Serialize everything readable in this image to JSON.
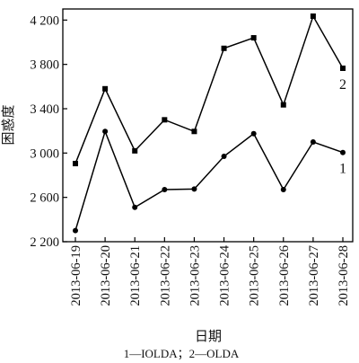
{
  "chart_data": {
    "type": "line",
    "xlabel": "日期",
    "ylabel": "困惑度",
    "ylim": [
      2200,
      4300
    ],
    "yticks": [
      "2 200",
      "2 600",
      "3 000",
      "3 400",
      "3 800",
      "4 200"
    ],
    "ytick_values": [
      2200,
      2600,
      3000,
      3400,
      3800,
      4200
    ],
    "categories": [
      "2013-06-19",
      "2013-06-20",
      "2013-06-21",
      "2013-06-22",
      "2013-06-23",
      "2013-06-24",
      "2013-06-25",
      "2013-06-26",
      "2013-06-27",
      "2013-06-28"
    ],
    "series": [
      {
        "name": "1",
        "marker": "circle",
        "values": [
          2300,
          3195,
          2510,
          2670,
          2675,
          2970,
          3175,
          2670,
          3100,
          3005
        ]
      },
      {
        "name": "2",
        "marker": "square",
        "values": [
          2905,
          3580,
          3020,
          3300,
          3195,
          3945,
          4040,
          3435,
          4235,
          3765
        ]
      }
    ],
    "legend_caption": "1—IOLDA；2—OLDA",
    "grid": false,
    "color": "#000000"
  }
}
